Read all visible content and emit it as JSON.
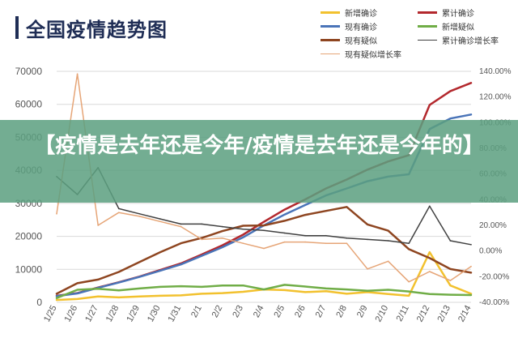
{
  "header": {
    "title": "全国疫情趋势图"
  },
  "overlay": {
    "text": "【疫情是去年还是今年/疫情是去年还是今年的】"
  },
  "chart_data": {
    "type": "line",
    "categories": [
      "1/25",
      "1/26",
      "1/27",
      "1/28",
      "1/29",
      "1/30",
      "1/31",
      "2/1",
      "2/2",
      "2/3",
      "2/4",
      "2/5",
      "2/6",
      "2/7",
      "2/8",
      "2/9",
      "2/10",
      "2/11",
      "2/12",
      "2/13",
      "2/14"
    ],
    "y_left": {
      "ticks": [
        "0",
        "10000",
        "20000",
        "30000",
        "40000",
        "50000",
        "60000",
        "70000"
      ],
      "range": [
        0,
        70000
      ]
    },
    "y_right": {
      "ticks": [
        "-40.00%",
        "-20.00%",
        "0.00%",
        "20.00%",
        "40.00%",
        "60.00%",
        "80.00%",
        "100.00%",
        "120.00%",
        "140.00%"
      ],
      "range": [
        -40,
        140
      ]
    },
    "grid": true,
    "legend_position": "top-right",
    "series": [
      {
        "name": "新增确诊",
        "axis": "left",
        "color": "#f2c12e",
        "width": 2.5,
        "values": [
          700,
          1000,
          1800,
          1500,
          1800,
          2000,
          2100,
          2600,
          2800,
          3200,
          3900,
          3700,
          3100,
          3400,
          2600,
          3100,
          2500,
          2000,
          15200,
          5100,
          2600
        ]
      },
      {
        "name": "累计确诊",
        "axis": "left",
        "color": "#b3282d",
        "width": 2.5,
        "values": [
          2000,
          2800,
          4500,
          6100,
          7800,
          9800,
          11800,
          14500,
          17300,
          20500,
          24400,
          28100,
          31200,
          34500,
          37200,
          40200,
          42700,
          44600,
          59800,
          64000,
          66500
        ]
      },
      {
        "name": "现有确诊",
        "axis": "left",
        "color": "#4a74b8",
        "width": 2.5,
        "values": [
          1900,
          2700,
          4400,
          6000,
          7700,
          9600,
          11500,
          14100,
          16700,
          19700,
          23300,
          26600,
          29500,
          32400,
          34500,
          36700,
          38100,
          38800,
          52500,
          55700,
          56900
        ]
      },
      {
        "name": "新增疑似",
        "axis": "left",
        "color": "#70ad47",
        "width": 2.5,
        "values": [
          1300,
          3800,
          4100,
          3600,
          4200,
          4700,
          4900,
          4700,
          5100,
          5100,
          3900,
          5300,
          4800,
          4200,
          3900,
          3500,
          3800,
          3300,
          2500,
          2300,
          2200
        ]
      },
      {
        "name": "现有疑似",
        "axis": "left",
        "color": "#8e4520",
        "width": 2.5,
        "values": [
          2600,
          5800,
          6900,
          9200,
          12200,
          15200,
          17900,
          19500,
          21600,
          23200,
          23300,
          24700,
          26500,
          27700,
          28900,
          23600,
          21700,
          16100,
          13400,
          10100,
          9000
        ]
      },
      {
        "name": "累计确诊增长率",
        "axis": "right",
        "color": "#404040",
        "width": 1.5,
        "values": [
          58,
          44,
          65,
          33,
          29,
          25,
          21,
          21,
          19,
          17,
          16,
          14,
          12,
          12,
          10,
          9,
          8,
          6,
          35,
          8,
          5
        ]
      },
      {
        "name": "现有疑似增长率",
        "axis": "right",
        "color": "#e6a577",
        "width": 1.5,
        "values": [
          29,
          138,
          20,
          30,
          27,
          23,
          19,
          9,
          10,
          6,
          2,
          7,
          7,
          6,
          6,
          -14,
          -8,
          -24,
          -16,
          -23,
          -12
        ]
      }
    ]
  }
}
